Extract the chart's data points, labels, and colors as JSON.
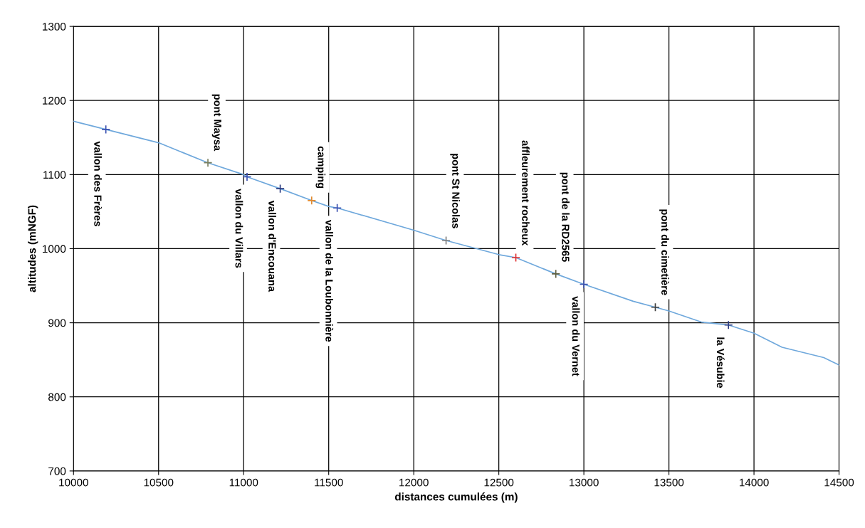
{
  "chart_data": {
    "type": "line",
    "xlabel": "distances cumulées (m)",
    "ylabel": "altitudes (mNGF)",
    "xlim": [
      10000,
      14500
    ],
    "xticks": [
      10000,
      10500,
      11000,
      11500,
      12000,
      12500,
      13000,
      13500,
      14000,
      14500
    ],
    "ylim": [
      700,
      1300
    ],
    "yticks": [
      700,
      800,
      900,
      1000,
      1100,
      1200,
      1300
    ],
    "grid": true,
    "series": [
      {
        "color": "#6fa8dc",
        "x": [
          10000,
          10190,
          10500,
          10790,
          11000,
          11020,
          11215,
          11400,
          11500,
          11550,
          12000,
          12190,
          12500,
          12600,
          12835,
          13000,
          13290,
          13420,
          13500,
          13690,
          13850,
          14000,
          14165,
          14410,
          14500
        ],
        "values": [
          1172,
          1161,
          1143,
          1116,
          1100,
          1097,
          1081,
          1065,
          1057,
          1055,
          1025,
          1011,
          992,
          988,
          966,
          952,
          929,
          921,
          916,
          901,
          897,
          886,
          867,
          853,
          843
        ],
        "marker": "none",
        "line_style": "solid"
      },
      {
        "type": "scatter",
        "marker": "cross",
        "x": [
          10190,
          10790,
          11020,
          11215,
          11400,
          11550,
          12190,
          12600,
          12835,
          13000,
          13420,
          13850
        ],
        "values": [
          1161,
          1116,
          1097,
          1081,
          1065,
          1055,
          1011,
          988,
          966,
          952,
          921,
          897
        ],
        "colors": [
          "#3a50b0",
          "#7a8060",
          "#3a50b0",
          "#2a3a80",
          "#e08a30",
          "#3a50b0",
          "#808080",
          "#e03030",
          "#606040",
          "#3a50b0",
          "#404040",
          "#2a3a80"
        ]
      }
    ],
    "annotations": [
      {
        "text": "vallon des Frères",
        "x": 10190,
        "y": 1161
      },
      {
        "text": "pont Maysa",
        "x": 10790,
        "y": 1116
      },
      {
        "text": "vallon du Villars",
        "x": 11020,
        "y": 1097
      },
      {
        "text": "camping",
        "x": 11400,
        "y": 1065
      },
      {
        "text": "vallon d'Encouana",
        "x": 11215,
        "y": 1081
      },
      {
        "text": "pont St Nicolas",
        "x": 12190,
        "y": 1011
      },
      {
        "text": "vallon de la Loubonnière",
        "x": 11550,
        "y": 1055
      },
      {
        "text": "affleurement rocheux",
        "x": 12600,
        "y": 988
      },
      {
        "text": "vallon du Vernet",
        "x": 13000,
        "y": 952
      },
      {
        "text": "pont de la RD2565",
        "x": 12835,
        "y": 966
      },
      {
        "text": "la Vésubie",
        "x": 13850,
        "y": 897
      },
      {
        "text": "pont du cimetière",
        "x": 13420,
        "y": 921
      }
    ]
  }
}
